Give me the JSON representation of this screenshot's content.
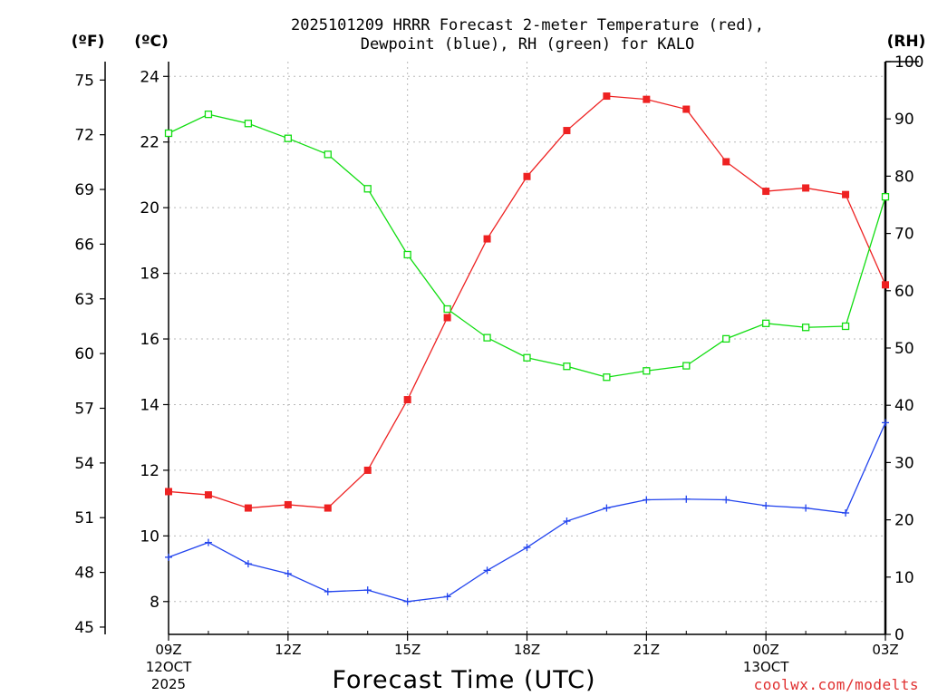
{
  "chart_data": {
    "type": "line",
    "title_line1": "2025101209 HRRR Forecast 2-meter Temperature (red),",
    "title_line2": "Dewpoint (blue), RH (green) for KALO",
    "xlabel": "Forecast Time (UTC)",
    "units": {
      "fahrenheit": "(ºF)",
      "celsius": "(ºC)",
      "rh": "(RH)"
    },
    "x_hours": [
      0,
      1,
      2,
      3,
      4,
      5,
      6,
      7,
      8,
      9,
      10,
      11,
      12,
      13,
      14,
      15,
      16,
      17,
      18
    ],
    "x_range": [
      0,
      18
    ],
    "x_ticks": [
      {
        "hour": 0,
        "label": "09Z",
        "date": "12OCT",
        "year": "2025"
      },
      {
        "hour": 3,
        "label": "12Z",
        "date": "",
        "year": ""
      },
      {
        "hour": 6,
        "label": "15Z",
        "date": "",
        "year": ""
      },
      {
        "hour": 9,
        "label": "18Z",
        "date": "",
        "year": ""
      },
      {
        "hour": 12,
        "label": "21Z",
        "date": "",
        "year": ""
      },
      {
        "hour": 15,
        "label": "00Z",
        "date": "13OCT",
        "year": ""
      },
      {
        "hour": 18,
        "label": "03Z",
        "date": "",
        "year": ""
      }
    ],
    "celsius_axis": {
      "range": [
        7,
        24.45
      ],
      "ticks": [
        "8",
        "10",
        "12",
        "14",
        "16",
        "18",
        "20",
        "22",
        "24"
      ]
    },
    "fahrenheit_axis": {
      "range": [
        44.6,
        76.01
      ],
      "ticks": [
        "45",
        "48",
        "51",
        "54",
        "57",
        "60",
        "63",
        "66",
        "69",
        "72",
        "75"
      ]
    },
    "rh_axis": {
      "range": [
        0,
        100
      ],
      "ticks": [
        "0",
        "10",
        "20",
        "30",
        "40",
        "50",
        "60",
        "70",
        "80",
        "90",
        "100"
      ]
    },
    "series": [
      {
        "name": "Temperature",
        "unit": "C",
        "color": "#ee2222",
        "marker": "filled-square",
        "values": [
          11.35,
          11.25,
          10.85,
          10.95,
          10.85,
          12.0,
          14.15,
          16.65,
          19.05,
          20.95,
          22.35,
          23.4,
          23.3,
          23.0,
          21.4,
          20.5,
          20.6,
          20.4,
          17.65
        ]
      },
      {
        "name": "Dewpoint",
        "unit": "C",
        "color": "#2244ee",
        "marker": "plus",
        "values": [
          9.35,
          9.8,
          9.15,
          8.85,
          8.3,
          8.35,
          8.0,
          8.15,
          8.95,
          9.65,
          10.45,
          10.85,
          11.1,
          11.12,
          11.1,
          10.92,
          10.85,
          10.7,
          13.45
        ]
      },
      {
        "name": "RH",
        "unit": "%",
        "color": "#11dd11",
        "marker": "open-square",
        "values": [
          87.5,
          90.8,
          89.2,
          86.6,
          83.8,
          77.8,
          66.3,
          56.8,
          51.8,
          48.3,
          46.8,
          44.9,
          46.0,
          46.9,
          51.6,
          54.3,
          53.6,
          53.8,
          76.4
        ]
      }
    ]
  },
  "credit": "coolwx.com/modelts"
}
